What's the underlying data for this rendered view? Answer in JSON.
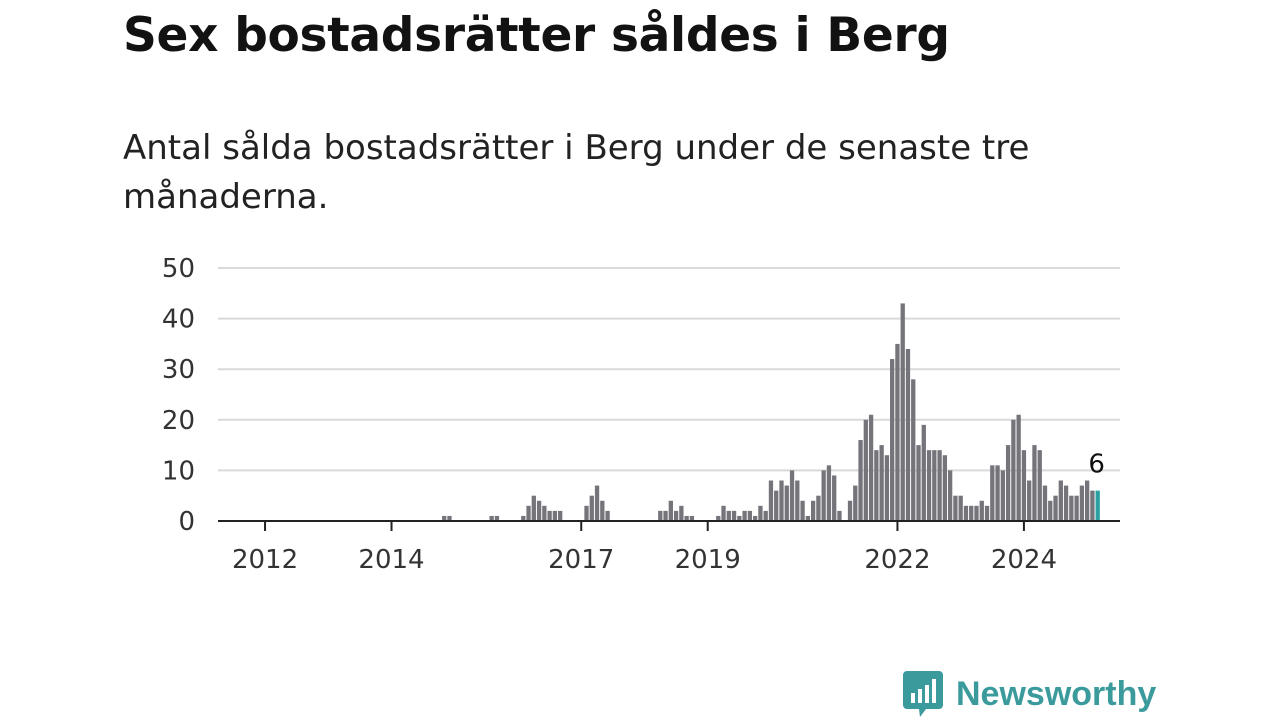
{
  "title": "Sex bostadsrätter såldes i Berg",
  "subtitle": "Antal sålda bostadsrätter i Berg under de senaste tre månaderna.",
  "brand": {
    "name": "Newsworthy",
    "icon": "bar-chart-bubble-icon",
    "color": "#3b9a9c"
  },
  "chart_data": {
    "type": "bar",
    "x_unit": "month",
    "x_start": "2011-06",
    "ylim": [
      0,
      50
    ],
    "yticks": [
      0,
      10,
      20,
      30,
      40,
      50
    ],
    "xticks": [
      "2012",
      "2014",
      "2017",
      "2019",
      "2022",
      "2024"
    ],
    "grid": true,
    "bar_color": "#75747b",
    "highlight_color": "#2aa1a0",
    "highlight_label": "6",
    "values": [
      0,
      0,
      0,
      0,
      0,
      0,
      0,
      0,
      0,
      0,
      0,
      0,
      0,
      0,
      0,
      0,
      0,
      0,
      0,
      0,
      0,
      0,
      0,
      0,
      0,
      0,
      0,
      0,
      0,
      0,
      0,
      0,
      0,
      0,
      0,
      0,
      0,
      0,
      0,
      0,
      0,
      1,
      1,
      0,
      0,
      0,
      0,
      0,
      0,
      0,
      1,
      1,
      0,
      0,
      0,
      0,
      1,
      3,
      5,
      4,
      3,
      2,
      2,
      2,
      0,
      0,
      0,
      0,
      3,
      5,
      7,
      4,
      2,
      0,
      0,
      0,
      0,
      0,
      0,
      0,
      0,
      0,
      2,
      2,
      4,
      2,
      3,
      1,
      1,
      0,
      0,
      0,
      0,
      1,
      3,
      2,
      2,
      1,
      2,
      2,
      1,
      3,
      2,
      8,
      6,
      8,
      7,
      10,
      8,
      4,
      1,
      4,
      5,
      10,
      11,
      9,
      2,
      0,
      4,
      7,
      16,
      20,
      21,
      14,
      15,
      13,
      32,
      35,
      43,
      34,
      28,
      15,
      19,
      14,
      14,
      14,
      13,
      10,
      5,
      5,
      3,
      3,
      3,
      4,
      3,
      11,
      11,
      10,
      15,
      20,
      21,
      14,
      8,
      15,
      14,
      7,
      4,
      5,
      8,
      7,
      5,
      5,
      7,
      8,
      6,
      6
    ]
  }
}
